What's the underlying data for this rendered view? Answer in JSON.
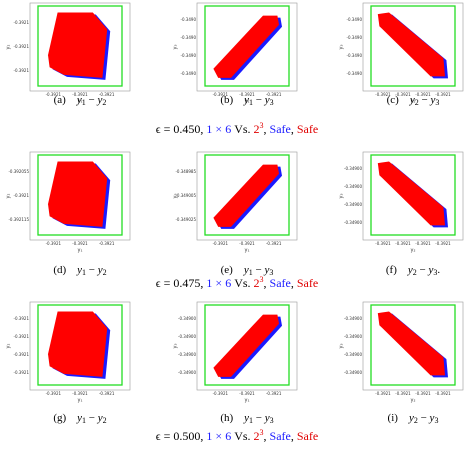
{
  "rows": [
    {
      "panels": [
        {
          "label": "(a)",
          "op": "−",
          "terms": [
            {
              "v": "y",
              "sub": "1"
            },
            {
              "v": "y",
              "sub": "2"
            }
          ],
          "x_label": "y₁",
          "y_label": "y₂",
          "x_ticks": [
            "-0.3921",
            "-0.3921",
            "-0.3921"
          ],
          "y_ticks": [
            "-0.3921",
            "-0.3921",
            "-0.3921"
          ]
        },
        {
          "label": "(b)",
          "op": "−",
          "terms": [
            {
              "v": "y",
              "sub": "1"
            },
            {
              "v": "y",
              "sub": "3"
            }
          ],
          "x_label": "y₁",
          "y_label": "y₃",
          "x_ticks": [
            "-0.3921",
            "-0.3921",
            "-0.3921"
          ],
          "y_ticks": [
            "-0.3490",
            "-0.3490",
            "-0.3490",
            "-0.3490"
          ]
        },
        {
          "label": "(c)",
          "op": "−",
          "terms": [
            {
              "v": "y",
              "sub": "2"
            },
            {
              "v": "y",
              "sub": "3"
            }
          ],
          "x_label": "y₂",
          "y_label": "y₃",
          "x_ticks": [
            "-0.3921",
            "-0.3921",
            "-0.3921",
            "-0.3921"
          ],
          "y_ticks": [
            "-0.3490",
            "-0.3490",
            "-0.3490",
            "-0.3490"
          ]
        }
      ],
      "caption": [
        {
          "t": "ϵ = 0.450, ",
          "c": "#000"
        },
        {
          "t": "1 × 6",
          "c": "#1a1aff"
        },
        {
          "t": " Vs. ",
          "c": "#000"
        },
        {
          "t": "2",
          "c": "#e00000"
        },
        {
          "t": "3",
          "c": "#e00000",
          "sup": true
        },
        {
          "t": ", ",
          "c": "#000"
        },
        {
          "t": "Safe",
          "c": "#1a1aff"
        },
        {
          "t": ", ",
          "c": "#000"
        },
        {
          "t": "Safe",
          "c": "#e00000"
        }
      ]
    },
    {
      "panels": [
        {
          "label": "(d)",
          "op": "−",
          "terms": [
            {
              "v": "y",
              "sub": "1"
            },
            {
              "v": "y",
              "sub": "2"
            }
          ],
          "x_label": "y₁",
          "y_label": "y₂",
          "x_ticks": [
            "-0.3921",
            "-0.3921",
            "-0.3921"
          ],
          "y_ticks": [
            "-0.392055",
            "-0.3921",
            "-0.392115"
          ]
        },
        {
          "label": "(e)",
          "op": "−",
          "terms": [
            {
              "v": "y",
              "sub": "1"
            },
            {
              "v": "y",
              "sub": "3"
            }
          ],
          "x_label": "y₁",
          "y_label": "y₃",
          "x_ticks": [
            "-0.3921",
            "-0.3921",
            "-0.3921"
          ],
          "y_ticks": [
            "-0.348985",
            "-0.349005",
            "-0.349025"
          ]
        },
        {
          "label": "(f)",
          "op": "−",
          "terms": [
            {
              "v": "y",
              "sub": "2"
            },
            {
              "v": "y",
              "sub": "3",
              "end": "."
            }
          ],
          "x_label": "y₂",
          "y_label": "y₃",
          "x_ticks": [
            "-0.3921",
            "-0.3921",
            "-0.3921",
            "-0.3921"
          ],
          "y_ticks": [
            "-0.34900",
            "-0.34900",
            "-0.34900",
            "-0.34900"
          ]
        }
      ],
      "caption": [
        {
          "t": "ϵ = 0.475, ",
          "c": "#000"
        },
        {
          "t": "1 × 6",
          "c": "#1a1aff"
        },
        {
          "t": " Vs. ",
          "c": "#000"
        },
        {
          "t": "2",
          "c": "#e00000"
        },
        {
          "t": "3",
          "c": "#e00000",
          "sup": true
        },
        {
          "t": ", ",
          "c": "#000"
        },
        {
          "t": "Safe",
          "c": "#1a1aff"
        },
        {
          "t": ", ",
          "c": "#000"
        },
        {
          "t": "Safe",
          "c": "#e00000"
        }
      ]
    },
    {
      "panels": [
        {
          "label": "(g)",
          "op": "−",
          "terms": [
            {
              "v": "y",
              "sub": "1"
            },
            {
              "v": "y",
              "sub": "2"
            }
          ],
          "x_label": "y₁",
          "y_label": "y₂",
          "x_ticks": [
            "-0.3921",
            "-0.3921",
            "-0.3921"
          ],
          "y_ticks": [
            "-0.3921",
            "-0.3921",
            "-0.3921",
            "-0.3921"
          ]
        },
        {
          "label": "(h)",
          "op": "−",
          "terms": [
            {
              "v": "y",
              "sub": "1"
            },
            {
              "v": "y",
              "sub": "3"
            }
          ],
          "x_label": "y₁",
          "y_label": "y₃",
          "x_ticks": [
            "-0.3921",
            "-0.3921",
            "-0.3921"
          ],
          "y_ticks": [
            "-0.34900",
            "-0.34900",
            "-0.34900",
            "-0.34900"
          ]
        },
        {
          "label": "(i)",
          "op": "−",
          "terms": [
            {
              "v": "y",
              "sub": "2"
            },
            {
              "v": "y",
              "sub": "3"
            }
          ],
          "x_label": "y₂",
          "y_label": "y₃",
          "x_ticks": [
            "-0.3921",
            "-0.3921",
            "-0.3921",
            "-0.3921"
          ],
          "y_ticks": [
            "-0.34900",
            "-0.34900",
            "-0.34900",
            "-0.34900"
          ]
        }
      ],
      "caption": [
        {
          "t": "ϵ = 0.500, ",
          "c": "#000"
        },
        {
          "t": "1 × 6",
          "c": "#1a1aff"
        },
        {
          "t": " Vs. ",
          "c": "#000"
        },
        {
          "t": "2",
          "c": "#e00000"
        },
        {
          "t": "3",
          "c": "#e00000",
          "sup": true
        },
        {
          "t": ", ",
          "c": "#000"
        },
        {
          "t": "Safe",
          "c": "#1a1aff"
        },
        {
          "t": ", ",
          "c": "#000"
        },
        {
          "t": "Safe",
          "c": "#e00000"
        }
      ]
    }
  ]
}
